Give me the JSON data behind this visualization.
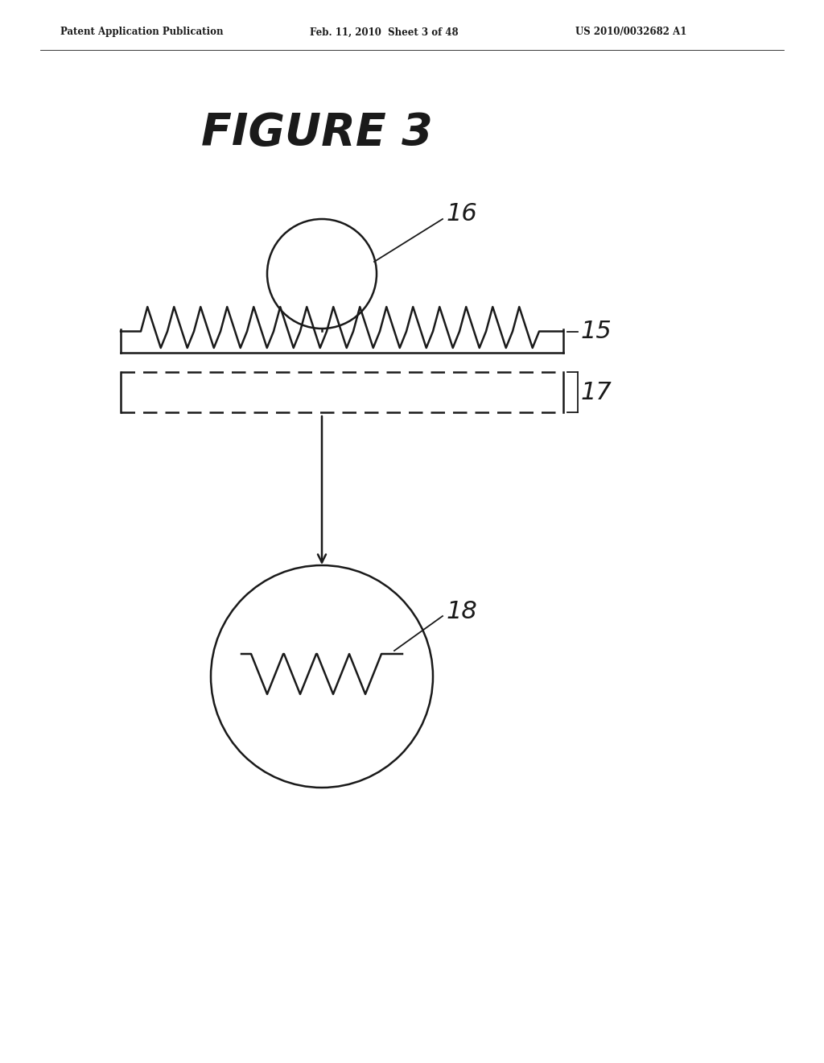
{
  "background_color": "#ffffff",
  "header_left": "Patent Application Publication",
  "header_mid": "Feb. 11, 2010  Sheet 3 of 48",
  "header_right": "US 2010/0032682 A1",
  "figure_title": "FIGURE 3",
  "label_16": "16",
  "label_15": "15",
  "label_17": "17",
  "label_18": "18",
  "line_color": "#1a1a1a",
  "line_width": 1.8,
  "fig_width": 10.24,
  "fig_height": 13.2
}
